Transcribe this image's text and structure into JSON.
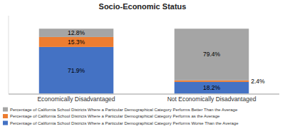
{
  "chart_data": {
    "type": "bar",
    "title": "Socio-Economic Status",
    "categories": [
      "Economically Disadvantaged",
      "Not Economically Disadvantaged"
    ],
    "series": [
      {
        "name": "Percentage of California School Districts Where a Particular Demographical Category Performs Worse Than the Average",
        "color": "#4472C4",
        "values": [
          71.9,
          18.2
        ],
        "value_labels": [
          "71.9%",
          "18.2%"
        ]
      },
      {
        "name": "Percentage of California School Districts Where a Particular Demographical Category Performs as the Average",
        "color": "#ED7D31",
        "values": [
          15.3,
          2.4
        ],
        "value_labels": [
          "15.3%",
          "2.4%"
        ]
      },
      {
        "name": "Percentage of California School Districts Where a Particular Demographical Category Performs Better Than the Average",
        "color": "#A5A5A5",
        "values": [
          12.8,
          79.4
        ],
        "value_labels": [
          "12.8%",
          "79.4%"
        ]
      }
    ],
    "stacked": true,
    "data_labels": true,
    "ylim": [
      0,
      120
    ],
    "tick_labels": "x",
    "grid": false,
    "legend": "bottom"
  }
}
